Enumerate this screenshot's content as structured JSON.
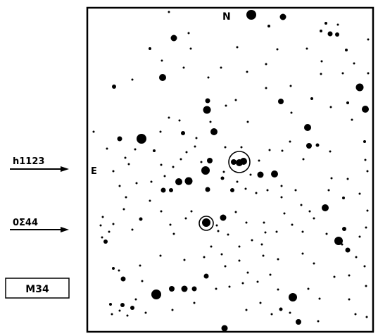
{
  "chart": {
    "north_label": "N",
    "east_label": "E",
    "object_label": "M34"
  },
  "pointers": [
    {
      "label": "h1123"
    },
    {
      "label": "0Σ44"
    }
  ],
  "colors": {
    "ink": "#000000",
    "paper": "#ffffff"
  }
}
